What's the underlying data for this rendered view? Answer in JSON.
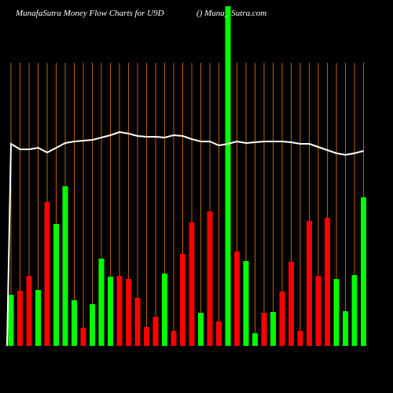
{
  "chart_data": {
    "type": "bar",
    "title": "MunafaSutra  Money Flow  Charts for U9D",
    "subtitle": "() MunafaSutra.com",
    "values": [
      65,
      70,
      89,
      71,
      183,
      155,
      203,
      58,
      23,
      53,
      111,
      88,
      89,
      85,
      61,
      24,
      37,
      92,
      19,
      117,
      157,
      42,
      171,
      31,
      432,
      120,
      108,
      16,
      42,
      43,
      69,
      107,
      19,
      159,
      89,
      163,
      85,
      44,
      90,
      189
    ],
    "colors": [
      "#00ff00",
      "#ff0000",
      "#ff0000",
      "#00ff00",
      "#ff0000",
      "#00ff00",
      "#00ff00",
      "#00ff00",
      "#ff0000",
      "#00ff00",
      "#00ff00",
      "#00ff00",
      "#ff0000",
      "#ff0000",
      "#ff0000",
      "#ff0000",
      "#ff0000",
      "#00ff00",
      "#ff0000",
      "#ff0000",
      "#ff0000",
      "#00ff00",
      "#ff0000",
      "#ff0000",
      "#00ff00",
      "#ff0000",
      "#00ff00",
      "#00ff00",
      "#ff0000",
      "#00ff00",
      "#ff0000",
      "#ff0000",
      "#ff0000",
      "#ff0000",
      "#ff0000",
      "#ff0000",
      "#00ff00",
      "#00ff00",
      "#00ff00",
      "#00ff00"
    ],
    "line_values": [
      257,
      250,
      250,
      252,
      246,
      252,
      258,
      260,
      261,
      262,
      265,
      268,
      272,
      270,
      267,
      266,
      266,
      265,
      268,
      267,
      263,
      260,
      260,
      255,
      257,
      260,
      258,
      259,
      260,
      260,
      260,
      259,
      257,
      257,
      253,
      249,
      245,
      243,
      245,
      248
    ],
    "line_color": "#ffffff",
    "ylim": [
      0,
      432
    ],
    "grid": true,
    "grid_color": "#b8600b"
  }
}
